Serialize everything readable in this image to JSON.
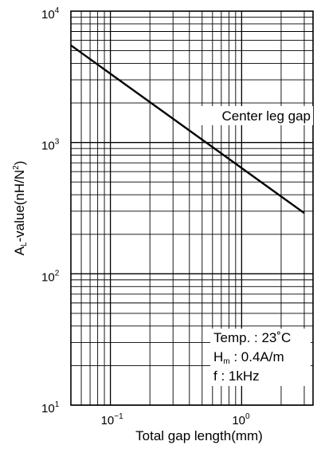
{
  "chart_data": {
    "type": "line",
    "title": "Center leg gap",
    "xlabel": "Total gap length(mm)",
    "ylabel": "AL-value(nH/N²)",
    "ylabel_parts": {
      "main": "A",
      "sub": "L",
      "rest": "-value(nH/N",
      "sup": "2",
      "end": ")"
    },
    "x_scale": "log",
    "y_scale": "log",
    "xlim": [
      0.05,
      3.5
    ],
    "ylim": [
      10,
      10000
    ],
    "grid": true,
    "x_ticks": [
      {
        "value": 0.1,
        "base": "10",
        "exp": "−1"
      },
      {
        "value": 1,
        "base": "10",
        "exp": "0"
      }
    ],
    "y_ticks": [
      {
        "value": 10,
        "base": "10",
        "exp": "1"
      },
      {
        "value": 100,
        "base": "10",
        "exp": "2"
      },
      {
        "value": 1000,
        "base": "10",
        "exp": "3"
      },
      {
        "value": 10000,
        "base": "10",
        "exp": "4"
      }
    ],
    "series": [
      {
        "x": [
          0.05,
          3.0
        ],
        "y": [
          5500,
          290
        ]
      }
    ],
    "conditions": {
      "temp": "Temp. : 23˚C",
      "hm_main": "H",
      "hm_sub": "m",
      "hm_rest": " : 0.4A/m",
      "freq": "f : 1kHz"
    }
  }
}
